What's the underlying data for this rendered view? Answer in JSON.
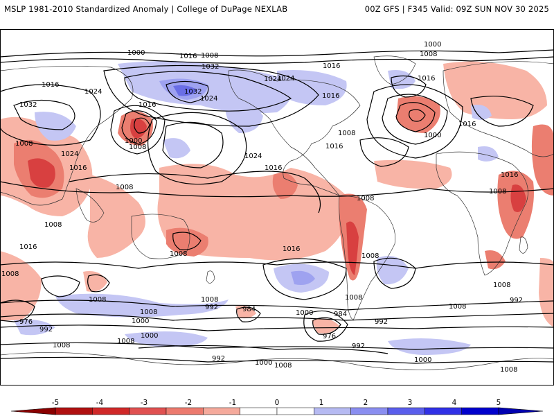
{
  "header": {
    "left_title": "MSLP 1981-2010 Standardized Anomaly | College of DuPage NEXLAB",
    "right_title": "00Z GFS | F345 Valid: 09Z SUN NOV 30 2025"
  },
  "isobar_labels": [
    "1000",
    "1016",
    "1008",
    "1016",
    "1024",
    "1032",
    "1032",
    "1024",
    "1016",
    "1008",
    "1000",
    "1024",
    "1032",
    "1024",
    "1016",
    "1008",
    "1000",
    "1008",
    "1016",
    "1016",
    "1000",
    "1016",
    "1008",
    "1016",
    "1024",
    "1024",
    "1016",
    "1008",
    "1008",
    "1016",
    "1008",
    "1008",
    "1008",
    "1016",
    "1008",
    "1008",
    "1016",
    "1008",
    "1008",
    "1016",
    "1008",
    "1000",
    "976",
    "992",
    "1008",
    "1000",
    "992",
    "984",
    "984",
    "976",
    "992",
    "1008",
    "992",
    "1000",
    "992",
    "1000",
    "1008",
    "1000",
    "1008",
    "1008",
    "1008",
    "1008",
    "992"
  ],
  "colorbar": {
    "ticks": [
      "-5",
      "-4",
      "-3",
      "-2",
      "-1",
      "0",
      "1",
      "2",
      "3",
      "4",
      "5"
    ],
    "colors": [
      "#b01010",
      "#d02828",
      "#e05050",
      "#ec7a6e",
      "#f5aa9c",
      "#ffffff",
      "#ffffff",
      "#b6baf2",
      "#8a8ef0",
      "#5a5eec",
      "#3030e6",
      "#0000cc"
    ]
  },
  "colors": {
    "neg_strong": "#d84040",
    "neg_mid": "#eb7e70",
    "neg_light": "#f8b4a6",
    "pos_light": "#c4c6f4",
    "pos_mid": "#9ea2f0",
    "pos_strong": "#6a6ee6"
  }
}
